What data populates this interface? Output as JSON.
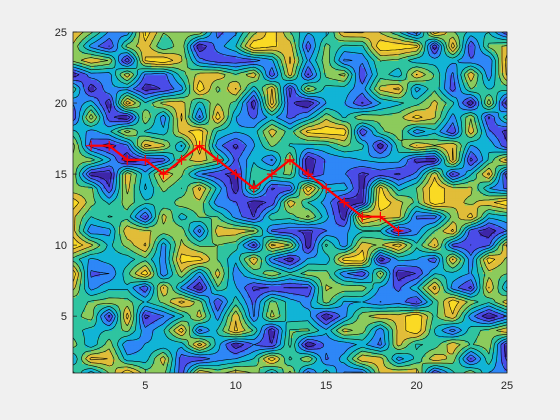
{
  "chart_data": {
    "type": "contourf",
    "title": "",
    "xlabel": "",
    "ylabel": "",
    "xlim": [
      1,
      25
    ],
    "ylim": [
      1,
      25
    ],
    "grid": false,
    "x_ticks": [
      5,
      10,
      15,
      20,
      25
    ],
    "y_ticks": [
      5,
      10,
      15,
      20,
      25
    ],
    "x_tick_labels": [
      "5",
      "10",
      "15",
      "20",
      "25"
    ],
    "y_tick_labels": [
      "5",
      "10",
      "15",
      "20",
      "25"
    ],
    "colormap": [
      "#3e26a8",
      "#4a4ce8",
      "#2e87f7",
      "#11b4d6",
      "#2fc4a0",
      "#8ccb5c",
      "#e1bd39",
      "#fada24"
    ],
    "contour_line_color": "#000000",
    "surface_description": "random 25x25 field, values roughly uniform in [0,1], filled contours with black iso-lines",
    "path": {
      "color": "#ff0000",
      "marker": "+",
      "x": [
        2,
        3,
        4,
        5,
        6,
        7,
        8,
        9,
        10,
        11,
        12,
        13,
        14,
        15,
        16,
        17,
        18,
        19
      ],
      "y": [
        17,
        17,
        16,
        16,
        15,
        16,
        17,
        16,
        15,
        14,
        15,
        16,
        15,
        14,
        13,
        12,
        12,
        11
      ]
    }
  }
}
